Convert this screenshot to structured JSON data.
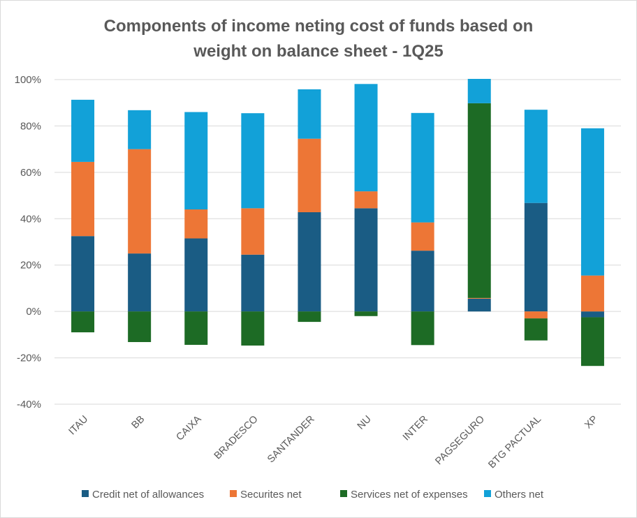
{
  "chart_data": {
    "type": "bar",
    "stacked": true,
    "title_lines": [
      "Components of income neting cost of funds based on",
      "weight on balance sheet  - 1Q25"
    ],
    "xlabel": "",
    "ylabel": "",
    "ylim": [
      -40,
      100
    ],
    "ytick_values": [
      -40,
      -20,
      0,
      20,
      40,
      60,
      80,
      100
    ],
    "ytick_labels": [
      "-40%",
      "-20%",
      "0%",
      "20%",
      "40%",
      "60%",
      "80%",
      "100%"
    ],
    "grid": true,
    "legend_position": "bottom",
    "categories": [
      "ITAU",
      "BB",
      "CAIXA",
      "BRADESCO",
      "SANTANDER",
      "NU",
      "INTER",
      "PAGSEGURO",
      "BTG PACTUAL",
      "XP"
    ],
    "series": [
      {
        "name": "Credit net of allowances",
        "color": "#1a5c84",
        "values": [
          32.5,
          25,
          31.5,
          24.5,
          42.8,
          44.5,
          26.2,
          5.5,
          46.8,
          -2.5
        ]
      },
      {
        "name": "Securites net",
        "color": "#ed7636",
        "values": [
          32,
          45,
          12.5,
          20,
          31.7,
          7.3,
          12.2,
          0.3,
          -3,
          15.5
        ]
      },
      {
        "name": "Services net of expenses",
        "color": "#1d6b25",
        "values": [
          -9,
          -13.2,
          -14.4,
          -14.7,
          -4.5,
          -2,
          -14.5,
          84,
          -9.5,
          -21
        ]
      },
      {
        "name": "Others net",
        "color": "#12a1d8",
        "values": [
          26.8,
          16.8,
          42,
          41,
          21.3,
          46.3,
          47.2,
          10.5,
          40.2,
          63.5
        ]
      }
    ]
  }
}
